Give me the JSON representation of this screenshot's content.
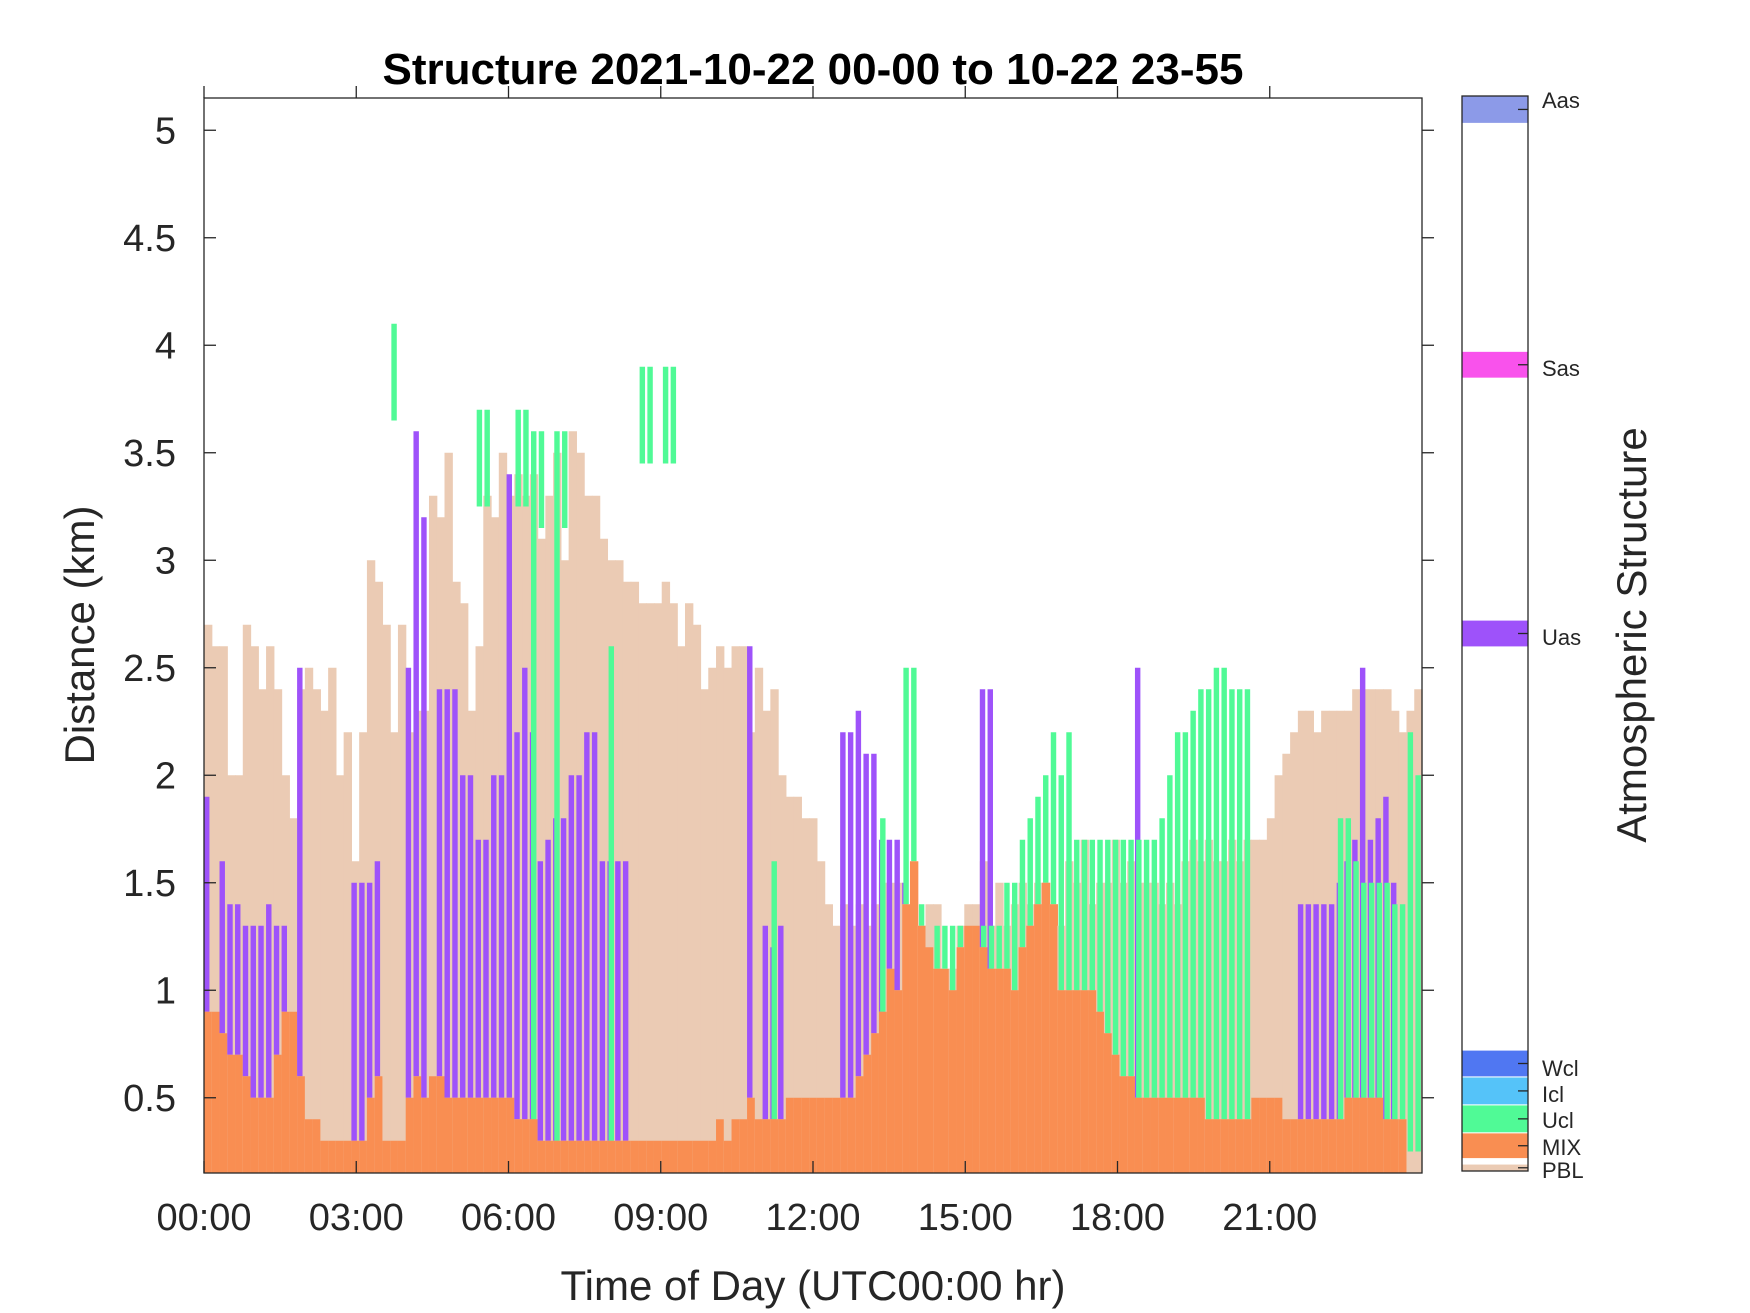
{
  "chart_data": {
    "type": "heatmap",
    "title": "Structure 2021-10-22 00-00 to 10-22 23-55",
    "xlabel": "Time of Day (UTC00:00 hr)",
    "ylabel": "Distance (km)",
    "colorbar_label": "Atmospheric Structure",
    "x_range_hours": [
      0,
      24
    ],
    "y_range_km": [
      0.15,
      5.15
    ],
    "x_ticks": [
      "00:00",
      "03:00",
      "06:00",
      "09:00",
      "12:00",
      "15:00",
      "18:00",
      "21:00"
    ],
    "y_ticks": [
      "0.5",
      "1",
      "1.5",
      "2",
      "2.5",
      "3",
      "3.5",
      "4",
      "4.5",
      "5"
    ],
    "grid": false,
    "legend": "colorbar-right",
    "colors": {
      "PBL": "#ebcbb4",
      "MIX": "#f98e52",
      "Ucl": "#50fa96",
      "Icl": "#55c3f9",
      "Wcl": "#5077f2",
      "Uas": "#9e52fa",
      "Sas": "#f952ec",
      "Aas": "#8c9ae8"
    },
    "colorbar_categories": [
      "PBL",
      "MIX",
      "Ucl",
      "Icl",
      "Wcl",
      "Uas",
      "Sas",
      "Aas"
    ],
    "series": [
      {
        "name": "PBL",
        "profile_tops_km": [
          2.7,
          2.6,
          2.6,
          2.0,
          2.0,
          2.7,
          2.6,
          2.4,
          2.6,
          2.4,
          2.0,
          1.8,
          2.4,
          2.5,
          2.4,
          2.3,
          2.5,
          2.0,
          2.2,
          1.6,
          2.2,
          3.0,
          2.9,
          2.7,
          2.2,
          2.7,
          2.2,
          2.3,
          2.3,
          3.3,
          3.2,
          3.5,
          2.9,
          2.8,
          2.3,
          2.6,
          3.3,
          3.2,
          3.5,
          3.3,
          3.4,
          3.3,
          3.4,
          3.1,
          3.3,
          3.5,
          3.0,
          3.6,
          3.5,
          3.3,
          3.3,
          3.1,
          3.0,
          3.0,
          2.9,
          2.9,
          2.8,
          2.8,
          2.8,
          2.9,
          2.8,
          2.6,
          2.8,
          2.7,
          2.4,
          2.5,
          2.6,
          2.5,
          2.6,
          2.6,
          2.2,
          2.5,
          2.3,
          2.4,
          2.0,
          1.9,
          1.9,
          1.8,
          1.8,
          1.6,
          1.4,
          1.3,
          1.4,
          1.3,
          1.4,
          1.3,
          1.4,
          1.5,
          1.5,
          1.5,
          1.3,
          1.2,
          1.3,
          1.4,
          1.4,
          1.0,
          1.1,
          1.3,
          1.4,
          1.4,
          1.6,
          1.3,
          1.5,
          1.3,
          1.4,
          1.5,
          1.4,
          1.5,
          1.5,
          1.4,
          1.3,
          1.6,
          1.5,
          1.7,
          1.4,
          1.5,
          1.5,
          1.7,
          1.5,
          1.6,
          1.5,
          1.5,
          1.5,
          1.4,
          1.5,
          1.4,
          1.6,
          1.7,
          1.6,
          1.7,
          1.6,
          1.6,
          1.7,
          1.6,
          1.7,
          1.7,
          1.7,
          1.8,
          2.0,
          2.1,
          2.2,
          2.3,
          2.3,
          2.2,
          2.3,
          2.3,
          2.3,
          2.3,
          2.4,
          2.4,
          2.4,
          2.4,
          2.4,
          2.3,
          2.2,
          2.3,
          2.4
        ]
      },
      {
        "name": "MIX",
        "profile_tops_km": [
          0.9,
          0.9,
          0.8,
          0.7,
          0.7,
          0.6,
          0.5,
          0.5,
          0.5,
          0.7,
          0.9,
          0.9,
          0.6,
          0.4,
          0.4,
          0.3,
          0.3,
          0.3,
          0.3,
          0.3,
          0.3,
          0.5,
          0.6,
          0.3,
          0.3,
          0.3,
          0.5,
          0.6,
          0.5,
          0.6,
          0.6,
          0.5,
          0.5,
          0.5,
          0.5,
          0.5,
          0.5,
          0.5,
          0.5,
          0.5,
          0.4,
          0.4,
          0.4,
          0.3,
          0.3,
          0.3,
          0.3,
          0.3,
          0.3,
          0.3,
          0.3,
          0.3,
          0.3,
          0.3,
          0.3,
          0.3,
          0.3,
          0.3,
          0.3,
          0.3,
          0.3,
          0.3,
          0.3,
          0.3,
          0.3,
          0.3,
          0.4,
          0.3,
          0.4,
          0.4,
          0.5,
          0.4,
          0.4,
          0.4,
          0.4,
          0.5,
          0.5,
          0.5,
          0.5,
          0.5,
          0.5,
          0.5,
          0.5,
          0.5,
          0.6,
          0.7,
          0.8,
          0.9,
          1.1,
          1.0,
          1.4,
          1.6,
          1.3,
          1.2,
          1.1,
          1.1,
          1.0,
          1.2,
          1.3,
          1.3,
          1.2,
          1.1,
          1.1,
          1.1,
          1.0,
          1.2,
          1.3,
          1.4,
          1.5,
          1.4,
          1.0,
          1.0,
          1.0,
          1.0,
          1.0,
          0.9,
          0.8,
          0.7,
          0.6,
          0.6,
          0.5,
          0.5,
          0.5,
          0.5,
          0.5,
          0.5,
          0.5,
          0.5,
          0.5,
          0.4,
          0.4,
          0.4,
          0.4,
          0.4,
          0.4,
          0.5,
          0.5,
          0.5,
          0.5,
          0.4,
          0.4,
          0.4,
          0.4,
          0.4,
          0.4,
          0.4,
          0.4,
          0.5,
          0.5,
          0.5,
          0.5,
          0.5,
          0.4,
          0.4,
          0.4
        ]
      },
      {
        "name": "Ucl",
        "profile_tops_km": [
          null,
          null,
          null,
          null,
          null,
          null,
          null,
          null,
          null,
          null,
          null,
          null,
          null,
          null,
          null,
          null,
          null,
          null,
          null,
          null,
          null,
          null,
          null,
          null,
          4.1,
          null,
          null,
          null,
          null,
          null,
          null,
          null,
          null,
          null,
          null,
          3.7,
          3.7,
          null,
          null,
          null,
          3.7,
          3.7,
          3.6,
          3.6,
          null,
          3.6,
          3.6,
          null,
          null,
          null,
          null,
          null,
          2.6,
          null,
          null,
          null,
          3.9,
          3.9,
          null,
          3.9,
          3.9,
          null,
          null,
          null,
          null,
          null,
          null,
          null,
          null,
          null,
          null,
          null,
          null,
          1.6,
          null,
          null,
          null,
          null,
          null,
          null,
          null,
          null,
          null,
          null,
          null,
          null,
          null,
          1.8,
          null,
          null,
          2.5,
          2.5,
          1.4,
          1.2,
          1.3,
          1.3,
          1.3,
          1.3,
          1.3,
          1.3,
          1.3,
          1.3,
          1.3,
          1.5,
          1.5,
          1.7,
          1.8,
          1.9,
          2.0,
          2.2,
          2.0,
          2.2,
          1.7,
          1.7,
          1.7,
          1.7,
          1.7,
          1.7,
          1.7,
          1.7,
          1.7,
          1.7,
          1.7,
          1.8,
          2.0,
          2.2,
          2.2,
          2.3,
          2.4,
          2.4,
          2.5,
          2.5,
          2.4,
          2.4,
          2.4,
          null,
          null,
          null,
          null,
          null,
          null,
          null,
          null,
          null,
          null,
          null,
          1.8,
          1.8,
          1.6,
          1.5,
          1.5,
          1.5,
          1.5,
          1.4,
          1.4,
          2.2,
          2.0
        ]
      },
      {
        "name": "Uas",
        "profile_tops_km": [
          1.9,
          null,
          1.6,
          1.4,
          1.4,
          1.3,
          1.3,
          1.3,
          1.4,
          1.3,
          1.3,
          null,
          2.5,
          null,
          null,
          null,
          null,
          null,
          null,
          1.5,
          1.5,
          1.5,
          1.6,
          null,
          null,
          null,
          2.5,
          3.6,
          3.2,
          null,
          2.4,
          2.4,
          2.4,
          2.0,
          2.0,
          1.7,
          1.7,
          2.0,
          2.0,
          3.4,
          2.2,
          2.5,
          2.2,
          1.6,
          1.7,
          1.8,
          1.8,
          2.0,
          2.0,
          2.2,
          2.2,
          1.6,
          1.6,
          1.6,
          1.6,
          null,
          null,
          null,
          null,
          null,
          null,
          null,
          null,
          null,
          null,
          null,
          null,
          null,
          null,
          null,
          2.6,
          null,
          1.3,
          1.2,
          1.3,
          null,
          null,
          null,
          null,
          null,
          null,
          null,
          2.2,
          2.2,
          2.3,
          2.1,
          2.1,
          1.7,
          1.7,
          1.7,
          1.5,
          1.5,
          1.3,
          1.0,
          1.0,
          1.0,
          1.0,
          1.0,
          1.0,
          1.0,
          2.4,
          2.4,
          null,
          null,
          null,
          null,
          null,
          null,
          null,
          null,
          null,
          null,
          null,
          null,
          null,
          null,
          null,
          null,
          null,
          null,
          2.5,
          null,
          null,
          null,
          null,
          null,
          null,
          null,
          null,
          null,
          null,
          null,
          null,
          null,
          null,
          null,
          null,
          null,
          null,
          null,
          null,
          1.4,
          1.4,
          1.4,
          1.4,
          1.4,
          1.5,
          1.6,
          1.7,
          2.5,
          1.7,
          1.8,
          1.9,
          1.5,
          null,
          null,
          null,
          null
        ]
      }
    ]
  }
}
